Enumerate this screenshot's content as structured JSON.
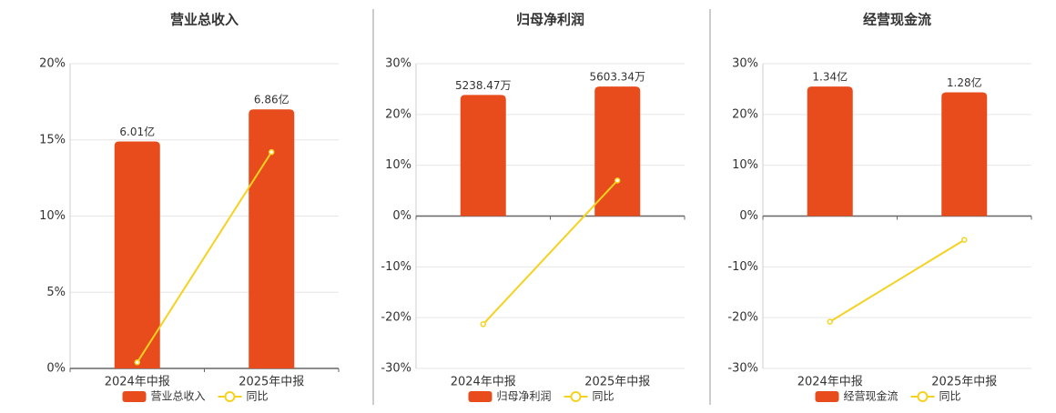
{
  "chart_data": [
    {
      "type": "bar",
      "title": "营业总收入",
      "categories": [
        "2024年中报",
        "2025年中报"
      ],
      "series": [
        {
          "name": "营业总收入",
          "color": "#e84c1c",
          "values": [
            6.01,
            6.86
          ],
          "value_labels": [
            "6.01亿",
            "6.86亿"
          ],
          "axis": "y2"
        },
        {
          "name": "同比",
          "color": "#f5d21f",
          "type": "line",
          "values": [
            0.4,
            14.2
          ]
        }
      ],
      "ylim": [
        0,
        20
      ],
      "yticks": [
        {
          "value": 0,
          "label": "0%"
        },
        {
          "value": 5,
          "label": "5%"
        },
        {
          "value": 10,
          "label": "10%"
        },
        {
          "value": 15,
          "label": "15%"
        },
        {
          "value": 20,
          "label": "20%"
        }
      ],
      "y2lim": [
        0,
        8.07
      ],
      "grid": true
    },
    {
      "type": "bar",
      "title": "归母净利润",
      "categories": [
        "2024年中报",
        "2025年中报"
      ],
      "series": [
        {
          "name": "归母净利润",
          "color": "#e84c1c",
          "values": [
            5238.47,
            5603.34
          ],
          "value_labels": [
            "5238.47万",
            "5603.34万"
          ],
          "axis": "y2"
        },
        {
          "name": "同比",
          "color": "#f5d21f",
          "type": "line",
          "values": [
            -21.3,
            7.0
          ]
        }
      ],
      "ylim": [
        -30,
        30
      ],
      "yticks": [
        {
          "value": -30,
          "label": "-30%"
        },
        {
          "value": -20,
          "label": "-20%"
        },
        {
          "value": -10,
          "label": "-10%"
        },
        {
          "value": 0,
          "label": "0%"
        },
        {
          "value": 10,
          "label": "10%"
        },
        {
          "value": 20,
          "label": "20%"
        },
        {
          "value": 30,
          "label": "30%"
        }
      ],
      "y2lim": [
        -6592,
        6592
      ],
      "grid": true
    },
    {
      "type": "bar",
      "title": "经营现金流",
      "categories": [
        "2024年中报",
        "2025年中报"
      ],
      "series": [
        {
          "name": "经营现金流",
          "color": "#e84c1c",
          "values": [
            1.34,
            1.28
          ],
          "value_labels": [
            "1.34亿",
            "1.28亿"
          ],
          "axis": "y2"
        },
        {
          "name": "同比",
          "color": "#f5d21f",
          "type": "line",
          "values": [
            -20.8,
            -4.7
          ]
        }
      ],
      "ylim": [
        -30,
        30
      ],
      "yticks": [
        {
          "value": -30,
          "label": "-30%"
        },
        {
          "value": -20,
          "label": "-20%"
        },
        {
          "value": -10,
          "label": "-10%"
        },
        {
          "value": 0,
          "label": "0%"
        },
        {
          "value": 10,
          "label": "10%"
        },
        {
          "value": 20,
          "label": "20%"
        },
        {
          "value": 30,
          "label": "30%"
        }
      ],
      "y2lim": [
        -1.576,
        1.576
      ],
      "grid": true
    }
  ]
}
